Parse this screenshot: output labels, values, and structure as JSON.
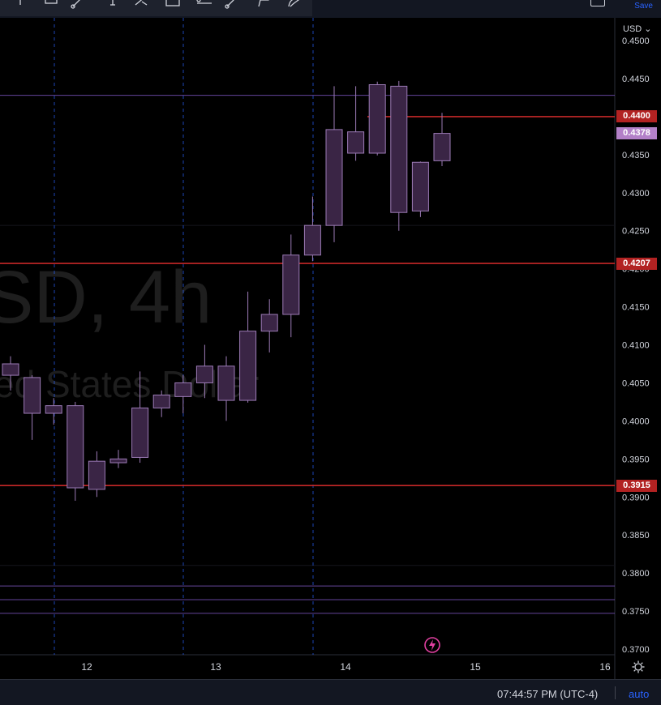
{
  "toolbar": {
    "save_label": "Save",
    "tools": [
      "cursor-icon",
      "measure-icon",
      "trend-line-icon",
      "text-cursor-icon",
      "brush-icon",
      "rectangle-icon",
      "horizontal-ray-icon",
      "ruler-icon",
      "path-icon",
      "curve-icon"
    ]
  },
  "watermark": {
    "symbol": "SD, 4h",
    "description": "ed States Dollar"
  },
  "price_axis": {
    "currency_label": "USD ⌄",
    "ticks": [
      "0.4500",
      "0.4450",
      "0.4350",
      "0.4300",
      "0.4250",
      "0.4200",
      "0.4150",
      "0.4100",
      "0.4050",
      "0.4000",
      "0.3950",
      "0.3900",
      "0.3850",
      "0.3800",
      "0.3750",
      "0.3700"
    ]
  },
  "price_labels": [
    {
      "value": "0.4400",
      "color": "#b22222"
    },
    {
      "value": "0.4378",
      "color": "#b380c8"
    },
    {
      "value": "0.4207",
      "color": "#b22222"
    },
    {
      "value": "0.3915",
      "color": "#b22222"
    }
  ],
  "time_axis": {
    "labels": [
      "12",
      "13",
      "14",
      "15",
      "16"
    ]
  },
  "status_bar": {
    "clock": "07:44:57 PM (UTC-4)",
    "auto_label": "auto"
  },
  "colors": {
    "candle_fill": "#3a2545",
    "candle_border": "#9c7bb6",
    "support_line": "#c62828",
    "purple_line": "#7e57c2",
    "session_line": "#2962ff",
    "accent": "#2962ff"
  },
  "chart_data": {
    "type": "candlestick",
    "symbol": "USD",
    "interval": "4h",
    "x_labels": [
      "12",
      "13",
      "14",
      "15",
      "16"
    ],
    "ylim": [
      0.3695,
      0.4505
    ],
    "candles": [
      {
        "o": 0.406,
        "h": 0.4085,
        "l": 0.404,
        "c": 0.4075
      },
      {
        "o": 0.401,
        "h": 0.406,
        "l": 0.3975,
        "c": 0.4057
      },
      {
        "o": 0.401,
        "h": 0.403,
        "l": 0.3995,
        "c": 0.402
      },
      {
        "o": 0.402,
        "h": 0.4025,
        "l": 0.3895,
        "c": 0.3912
      },
      {
        "o": 0.391,
        "h": 0.396,
        "l": 0.39,
        "c": 0.3947
      },
      {
        "o": 0.3945,
        "h": 0.3962,
        "l": 0.3938,
        "c": 0.395
      },
      {
        "o": 0.3952,
        "h": 0.4065,
        "l": 0.3945,
        "c": 0.4017
      },
      {
        "o": 0.4017,
        "h": 0.404,
        "l": 0.4005,
        "c": 0.4034
      },
      {
        "o": 0.4032,
        "h": 0.406,
        "l": 0.401,
        "c": 0.405
      },
      {
        "o": 0.405,
        "h": 0.41,
        "l": 0.403,
        "c": 0.4072
      },
      {
        "o": 0.4072,
        "h": 0.4085,
        "l": 0.4,
        "c": 0.4027
      },
      {
        "o": 0.4027,
        "h": 0.417,
        "l": 0.4024,
        "c": 0.4118
      },
      {
        "o": 0.4118,
        "h": 0.416,
        "l": 0.409,
        "c": 0.414
      },
      {
        "o": 0.414,
        "h": 0.4245,
        "l": 0.411,
        "c": 0.4218
      },
      {
        "o": 0.4218,
        "h": 0.4295,
        "l": 0.421,
        "c": 0.4257
      },
      {
        "o": 0.4257,
        "h": 0.444,
        "l": 0.4235,
        "c": 0.4383
      },
      {
        "o": 0.438,
        "h": 0.444,
        "l": 0.4342,
        "c": 0.4352
      },
      {
        "o": 0.4352,
        "h": 0.4446,
        "l": 0.4349,
        "c": 0.4442
      },
      {
        "o": 0.444,
        "h": 0.4447,
        "l": 0.425,
        "c": 0.4274
      },
      {
        "o": 0.4276,
        "h": 0.4341,
        "l": 0.4268,
        "c": 0.434
      },
      {
        "o": 0.4342,
        "h": 0.4405,
        "l": 0.4335,
        "c": 0.4378
      }
    ],
    "horizontal_lines": [
      {
        "price": 0.44,
        "style": "red"
      },
      {
        "price": 0.4207,
        "style": "red"
      },
      {
        "price": 0.3915,
        "style": "red"
      },
      {
        "price": 0.4428,
        "style": "purple"
      },
      {
        "price": 0.3783,
        "style": "purple"
      },
      {
        "price": 0.3765,
        "style": "purple"
      },
      {
        "price": 0.3747,
        "style": "purple"
      }
    ]
  }
}
